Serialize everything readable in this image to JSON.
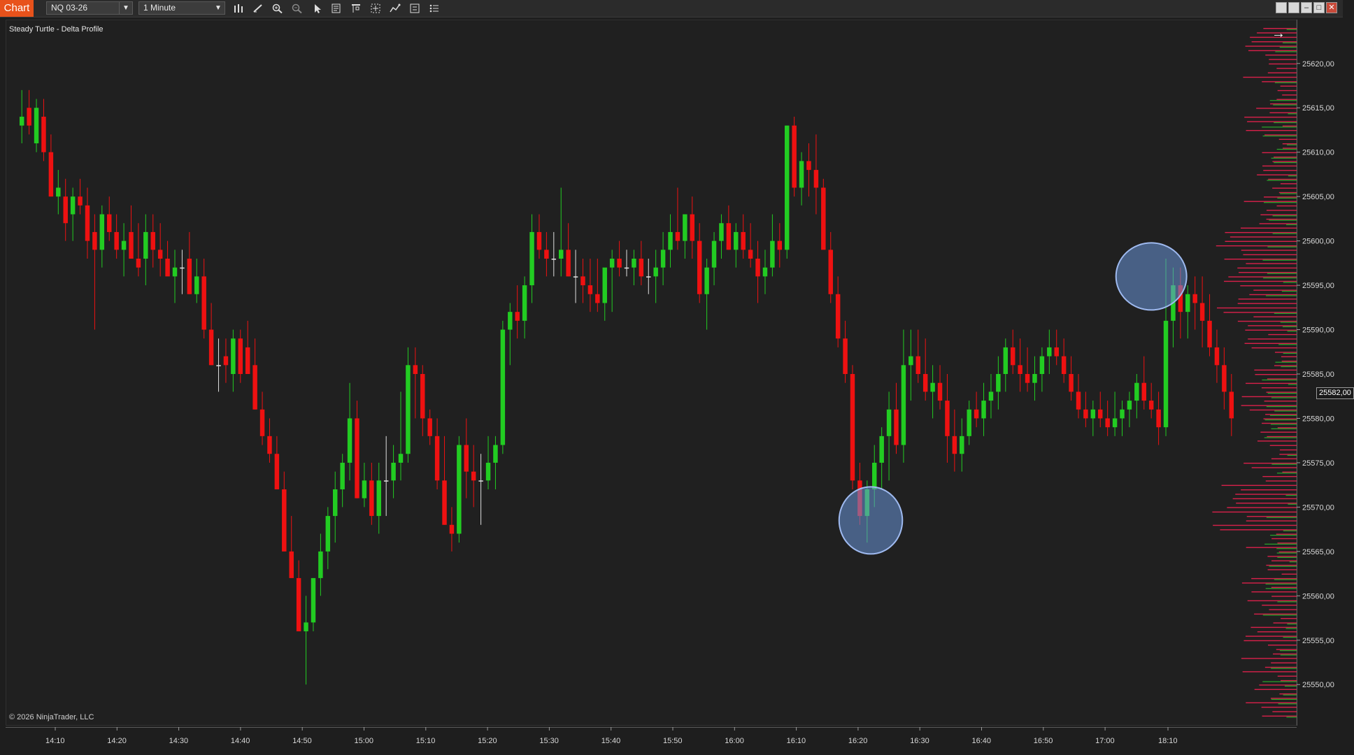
{
  "app": {
    "title": "Chart"
  },
  "toolbar": {
    "instrument": "NQ 03-26",
    "interval": "1 Minute",
    "icons": [
      "bar-type-icon",
      "draw-tool-icon",
      "zoom-in-icon",
      "zoom-out-icon",
      "pointer-icon",
      "data-box-icon",
      "range-icon",
      "crosshair-icon",
      "strategy-icon",
      "properties-icon",
      "indicators-list-icon"
    ]
  },
  "chart": {
    "indicator_label": "Steady Turtle - Delta Profile",
    "copyright": "© 2026 NinjaTrader, LLC",
    "last_price": "25582,00",
    "colors": {
      "up": "#22cc22",
      "down": "#ee1111",
      "doji": "#e0e0e0",
      "background": "#202020",
      "profile_sell": "#d8204a",
      "profile_buy": "#2aa82a",
      "highlight": "#6a95d8"
    }
  },
  "chart_data": {
    "type": "candlestick",
    "y_range": [
      25546,
      25624
    ],
    "price_ticks": [
      "25620,00",
      "25615,00",
      "25610,00",
      "25605,00",
      "25600,00",
      "25595,00",
      "25590,00",
      "25585,00",
      "25580,00",
      "25575,00",
      "25570,00",
      "25565,00",
      "25560,00",
      "25555,00",
      "25550,00"
    ],
    "price_tick_values": [
      25620,
      25615,
      25610,
      25605,
      25600,
      25595,
      25590,
      25585,
      25580,
      25575,
      25570,
      25565,
      25560,
      25555,
      25550
    ],
    "time_ticks": [
      "14:10",
      "14:20",
      "14:30",
      "14:40",
      "14:50",
      "15:00",
      "15:10",
      "15:20",
      "15:30",
      "15:40",
      "15:50",
      "16:00",
      "16:10",
      "16:20",
      "16:30",
      "16:40",
      "16:50",
      "17:00",
      "18:10"
    ],
    "bars": [
      [
        25613,
        25617,
        25611,
        25614
      ],
      [
        25615,
        25617,
        25612,
        25613
      ],
      [
        25611,
        25616,
        25610,
        25615
      ],
      [
        25614,
        25616,
        25609,
        25610
      ],
      [
        25610,
        25612,
        25605,
        25605
      ],
      [
        25605,
        25608,
        25603,
        25606
      ],
      [
        25605,
        25607,
        25600,
        25602
      ],
      [
        25603,
        25606,
        25600,
        25605
      ],
      [
        25605,
        25607,
        25603,
        25604
      ],
      [
        25604,
        25606,
        25598,
        25600
      ],
      [
        25601,
        25603,
        25590,
        25599
      ],
      [
        25599,
        25604,
        25597,
        25603
      ],
      [
        25603,
        25605,
        25600,
        25601
      ],
      [
        25601,
        25603,
        25598,
        25599
      ],
      [
        25599,
        25602,
        25596,
        25600
      ],
      [
        25601,
        25604,
        25598,
        25598
      ],
      [
        25598,
        25602,
        25596,
        25597
      ],
      [
        25598,
        25603,
        25595,
        25601
      ],
      [
        25601,
        25603,
        25597,
        25599
      ],
      [
        25599,
        25602,
        25596,
        25598
      ],
      [
        25598,
        25600,
        25597,
        25596
      ],
      [
        25596,
        25599,
        25593,
        25597
      ],
      [
        25597,
        25599,
        25594,
        25597
      ],
      [
        25598,
        25601,
        25594,
        25594
      ],
      [
        25594,
        25598,
        25593,
        25596
      ],
      [
        25596,
        25598,
        25589,
        25590
      ],
      [
        25590,
        25593,
        25586,
        25586
      ],
      [
        25586,
        25589,
        25583,
        25586
      ],
      [
        25587,
        25589,
        25584,
        25586
      ],
      [
        25585,
        25590,
        25583,
        25589
      ],
      [
        25589,
        25590,
        25584,
        25585
      ],
      [
        25588,
        25591,
        25585,
        25585
      ],
      [
        25586,
        25589,
        25581,
        25581
      ],
      [
        25581,
        25583,
        25577,
        25578
      ],
      [
        25578,
        25580,
        25575,
        25576
      ],
      [
        25576,
        25578,
        25572,
        25572
      ],
      [
        25572,
        25574,
        25565,
        25565
      ],
      [
        25565,
        25569,
        25563,
        25562
      ],
      [
        25562,
        25564,
        25556,
        25556
      ],
      [
        25556,
        25560,
        25550,
        25557
      ],
      [
        25557,
        25562,
        25556,
        25562
      ],
      [
        25562,
        25567,
        25560,
        25565
      ],
      [
        25565,
        25570,
        25563,
        25569
      ],
      [
        25569,
        25574,
        25566,
        25572
      ],
      [
        25572,
        25576,
        25570,
        25575
      ],
      [
        25575,
        25584,
        25573,
        25580
      ],
      [
        25580,
        25582,
        25571,
        25571
      ],
      [
        25571,
        25575,
        25570,
        25573
      ],
      [
        25573,
        25575,
        25568,
        25569
      ],
      [
        25569,
        25575,
        25567,
        25573
      ],
      [
        25573,
        25578,
        25569,
        25573
      ],
      [
        25573,
        25577,
        25571,
        25575
      ],
      [
        25575,
        25583,
        25573,
        25576
      ],
      [
        25576,
        25588,
        25575,
        25586
      ],
      [
        25586,
        25588,
        25580,
        25585
      ],
      [
        25585,
        25586,
        25578,
        25580
      ],
      [
        25580,
        25581,
        25577,
        25578
      ],
      [
        25578,
        25580,
        25572,
        25573
      ],
      [
        25573,
        25578,
        25568,
        25568
      ],
      [
        25568,
        25570,
        25565,
        25567
      ],
      [
        25567,
        25578,
        25566,
        25577
      ],
      [
        25577,
        25580,
        25571,
        25574
      ],
      [
        25574,
        25577,
        25570,
        25573
      ],
      [
        25573,
        25576,
        25568,
        25573
      ],
      [
        25573,
        25578,
        25572,
        25575
      ],
      [
        25575,
        25578,
        25572,
        25577
      ],
      [
        25577,
        25591,
        25576,
        25590
      ],
      [
        25590,
        25593,
        25586,
        25592
      ],
      [
        25592,
        25595,
        25589,
        25591
      ],
      [
        25591,
        25596,
        25589,
        25595
      ],
      [
        25595,
        25603,
        25593,
        25601
      ],
      [
        25601,
        25603,
        25598,
        25599
      ],
      [
        25599,
        25601,
        25596,
        25598
      ],
      [
        25598,
        25601,
        25596,
        25598
      ],
      [
        25598,
        25606,
        25596,
        25599
      ],
      [
        25599,
        25602,
        25596,
        25596
      ],
      [
        25596,
        25599,
        25593,
        25596
      ],
      [
        25596,
        25598,
        25593,
        25595
      ],
      [
        25595,
        25598,
        25592,
        25594
      ],
      [
        25594,
        25598,
        25592,
        25593
      ],
      [
        25593,
        25596,
        25591,
        25597
      ],
      [
        25597,
        25599,
        25592,
        25598
      ],
      [
        25598,
        25600,
        25596,
        25597
      ],
      [
        25597,
        25599,
        25596,
        25597
      ],
      [
        25597,
        25599,
        25595,
        25598
      ],
      [
        25598,
        25600,
        25595,
        25596
      ],
      [
        25596,
        25598,
        25594,
        25596
      ],
      [
        25596,
        25599,
        25593,
        25597
      ],
      [
        25597,
        25601,
        25595,
        25599
      ],
      [
        25599,
        25603,
        25597,
        25601
      ],
      [
        25601,
        25606,
        25599,
        25600
      ],
      [
        25600,
        25603,
        25598,
        25603
      ],
      [
        25603,
        25605,
        25598,
        25600
      ],
      [
        25600,
        25602,
        25593,
        25594
      ],
      [
        25594,
        25598,
        25590,
        25597
      ],
      [
        25597,
        25601,
        25595,
        25600
      ],
      [
        25600,
        25603,
        25598,
        25602
      ],
      [
        25602,
        25604,
        25599,
        25599
      ],
      [
        25599,
        25602,
        25597,
        25601
      ],
      [
        25601,
        25603,
        25598,
        25599
      ],
      [
        25599,
        25602,
        25597,
        25598
      ],
      [
        25598,
        25600,
        25593,
        25596
      ],
      [
        25596,
        25599,
        25594,
        25597
      ],
      [
        25597,
        25603,
        25596,
        25600
      ],
      [
        25600,
        25602,
        25597,
        25599
      ],
      [
        25599,
        25613,
        25598,
        25613
      ],
      [
        25613,
        25614,
        25605,
        25606
      ],
      [
        25606,
        25610,
        25604,
        25609
      ],
      [
        25609,
        25611,
        25605,
        25608
      ],
      [
        25608,
        25612,
        25603,
        25606
      ],
      [
        25606,
        25607,
        25600,
        25599
      ],
      [
        25599,
        25601,
        25593,
        25594
      ],
      [
        25594,
        25596,
        25588,
        25589
      ],
      [
        25589,
        25591,
        25584,
        25585
      ],
      [
        25585,
        25586,
        25572,
        25573
      ],
      [
        25573,
        25575,
        25568,
        25569
      ],
      [
        25569,
        25573,
        25566,
        25572
      ],
      [
        25572,
        25577,
        25570,
        25575
      ],
      [
        25575,
        25579,
        25572,
        25578
      ],
      [
        25578,
        25583,
        25573,
        25581
      ],
      [
        25581,
        25584,
        25576,
        25577
      ],
      [
        25577,
        25590,
        25575,
        25586
      ],
      [
        25586,
        25590,
        25582,
        25587
      ],
      [
        25587,
        25590,
        25584,
        25585
      ],
      [
        25585,
        25589,
        25582,
        25583
      ],
      [
        25583,
        25586,
        25580,
        25584
      ],
      [
        25584,
        25586,
        25581,
        25582
      ],
      [
        25582,
        25585,
        25575,
        25578
      ],
      [
        25578,
        25581,
        25574,
        25576
      ],
      [
        25576,
        25580,
        25574,
        25578
      ],
      [
        25578,
        25582,
        25577,
        25581
      ],
      [
        25581,
        25583,
        25579,
        25580
      ],
      [
        25580,
        25584,
        25578,
        25582
      ],
      [
        25582,
        25585,
        25580,
        25583
      ],
      [
        25583,
        25587,
        25581,
        25585
      ],
      [
        25585,
        25589,
        25583,
        25588
      ],
      [
        25588,
        25590,
        25585,
        25586
      ],
      [
        25586,
        25589,
        25583,
        25585
      ],
      [
        25585,
        25588,
        25583,
        25584
      ],
      [
        25584,
        25587,
        25582,
        25585
      ],
      [
        25585,
        25588,
        25583,
        25587
      ],
      [
        25587,
        25590,
        25585,
        25588
      ],
      [
        25588,
        25590,
        25586,
        25587
      ],
      [
        25587,
        25589,
        25584,
        25585
      ],
      [
        25585,
        25587,
        25582,
        25583
      ],
      [
        25583,
        25585,
        25580,
        25581
      ],
      [
        25581,
        25583,
        25579,
        25580
      ],
      [
        25580,
        25582,
        25578,
        25581
      ],
      [
        25581,
        25583,
        25579,
        25580
      ],
      [
        25580,
        25582,
        25578,
        25579
      ],
      [
        25579,
        25583,
        25578,
        25580
      ],
      [
        25580,
        25582,
        25578,
        25581
      ],
      [
        25581,
        25583,
        25579,
        25582
      ],
      [
        25582,
        25585,
        25580,
        25584
      ],
      [
        25584,
        25587,
        25581,
        25582
      ],
      [
        25582,
        25584,
        25580,
        25581
      ],
      [
        25581,
        25583,
        25577,
        25579
      ],
      [
        25579,
        25598,
        25578,
        25591
      ],
      [
        25591,
        25597,
        25588,
        25595
      ],
      [
        25595,
        25597,
        25589,
        25592
      ],
      [
        25592,
        25595,
        25589,
        25594
      ],
      [
        25594,
        25596,
        25590,
        25593
      ],
      [
        25593,
        25596,
        25588,
        25591
      ],
      [
        25591,
        25594,
        25587,
        25588
      ],
      [
        25588,
        25590,
        25584,
        25586
      ],
      [
        25586,
        25588,
        25581,
        25583
      ],
      [
        25583,
        25585,
        25578,
        25580
      ]
    ],
    "annotations": [
      {
        "shape": "ellipse",
        "around": "swing low near 25566"
      },
      {
        "shape": "ellipse",
        "around": "swing high near 25595"
      }
    ]
  }
}
